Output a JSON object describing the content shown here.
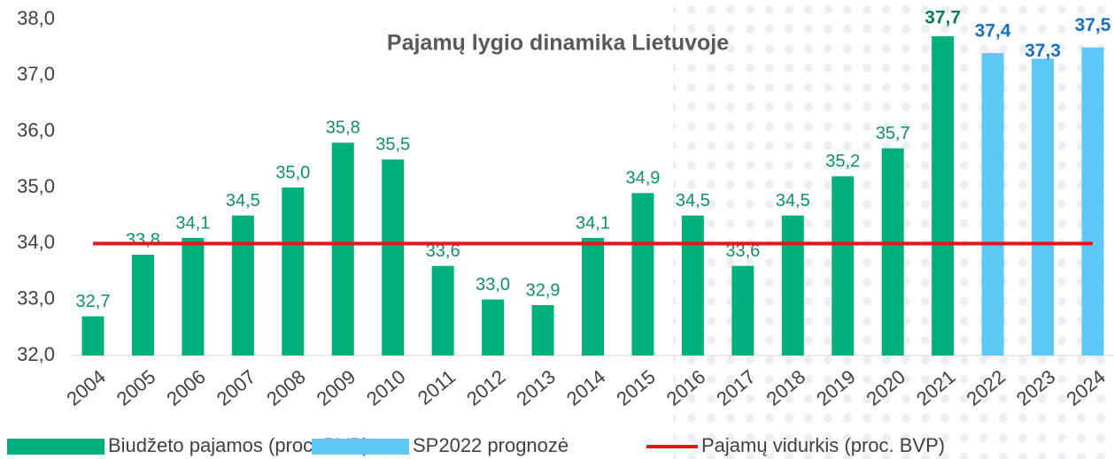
{
  "chart_data": {
    "type": "bar",
    "title": "Pajamų lygio dinamika Lietuvoje",
    "categories": [
      "2004",
      "2005",
      "2006",
      "2007",
      "2008",
      "2009",
      "2010",
      "2011",
      "2012",
      "2013",
      "2014",
      "2015",
      "2016",
      "2017",
      "2018",
      "2019",
      "2020",
      "2021",
      "2022",
      "2023",
      "2024"
    ],
    "series": [
      {
        "name": "Biudžeto pajamos (proc. BVP)",
        "color": "#00b07c",
        "type": "bar",
        "values": [
          32.7,
          33.8,
          34.1,
          34.5,
          35.0,
          35.8,
          35.5,
          33.6,
          33.0,
          32.9,
          34.1,
          34.9,
          34.5,
          33.6,
          34.5,
          35.2,
          35.7,
          37.7,
          null,
          null,
          null
        ],
        "value_labels": [
          "32,7",
          "33,8",
          "34,1",
          "34,5",
          "35,0",
          "35,8",
          "35,5",
          "33,6",
          "33,0",
          "32,9",
          "34,1",
          "34,9",
          "34,5",
          "33,6",
          "34,5",
          "35,2",
          "35,7",
          "37,7",
          null,
          null,
          null
        ]
      },
      {
        "name": "SP2022 prognozė",
        "color": "#5bc8f5",
        "type": "bar",
        "values": [
          null,
          null,
          null,
          null,
          null,
          null,
          null,
          null,
          null,
          null,
          null,
          null,
          null,
          null,
          null,
          null,
          null,
          null,
          37.4,
          37.3,
          37.5
        ],
        "value_labels": [
          null,
          null,
          null,
          null,
          null,
          null,
          null,
          null,
          null,
          null,
          null,
          null,
          null,
          null,
          null,
          null,
          null,
          null,
          "37,4",
          "37,3",
          "37,5"
        ]
      },
      {
        "name": "Pajamų vidurkis (proc. BVP)",
        "color": "#e8141c",
        "type": "line",
        "values": [
          34,
          34,
          34,
          34,
          34,
          34,
          34,
          34,
          34,
          34,
          34,
          34,
          34,
          34,
          34,
          34,
          34,
          34,
          34,
          34,
          34
        ]
      }
    ],
    "ylim": [
      32,
      38
    ],
    "yticks": [
      {
        "value": 32,
        "label": "32,0"
      },
      {
        "value": 33,
        "label": "33,0"
      },
      {
        "value": 34,
        "label": "34,0"
      },
      {
        "value": 35,
        "label": "35,0"
      },
      {
        "value": 36,
        "label": "36,0"
      },
      {
        "value": 37,
        "label": "37,0"
      },
      {
        "value": 38,
        "label": "38,0"
      }
    ],
    "legend": "bottom"
  }
}
